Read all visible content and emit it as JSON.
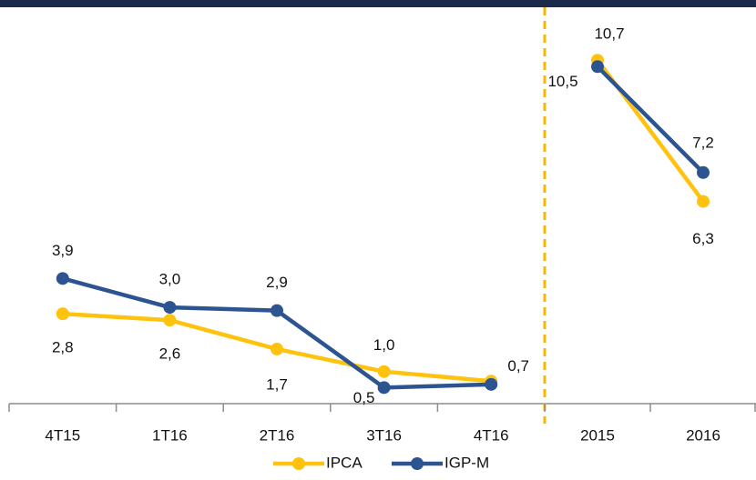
{
  "chart_data": [
    {
      "type": "line",
      "categories": [
        "4T15",
        "1T16",
        "2T16",
        "3T16",
        "4T16"
      ],
      "ylim": [
        0,
        11.5
      ],
      "series": [
        {
          "name": "IPCA",
          "color": "#ffc20e",
          "values": [
            2.8,
            2.6,
            1.7,
            1.0,
            0.7
          ],
          "value_labels": [
            "2,8",
            "2,6",
            "1,7",
            "1,0",
            "0,7"
          ]
        },
        {
          "name": "IGP-M",
          "color": "#2b5491",
          "values": [
            3.9,
            3.0,
            2.9,
            0.5,
            0.6
          ],
          "value_labels": [
            "3,9",
            "3,0",
            "2,9",
            "0,5",
            null
          ]
        }
      ]
    },
    {
      "type": "line",
      "categories": [
        "2015",
        "2016"
      ],
      "ylim": [
        0,
        11.5
      ],
      "series": [
        {
          "name": "IPCA",
          "color": "#ffc20e",
          "values": [
            10.7,
            6.3
          ],
          "value_labels": [
            "10,7",
            "6,3"
          ]
        },
        {
          "name": "IGP-M",
          "color": "#2b5491",
          "values": [
            10.5,
            7.2
          ],
          "value_labels": [
            "10,5",
            "7,2"
          ]
        }
      ]
    }
  ]
}
